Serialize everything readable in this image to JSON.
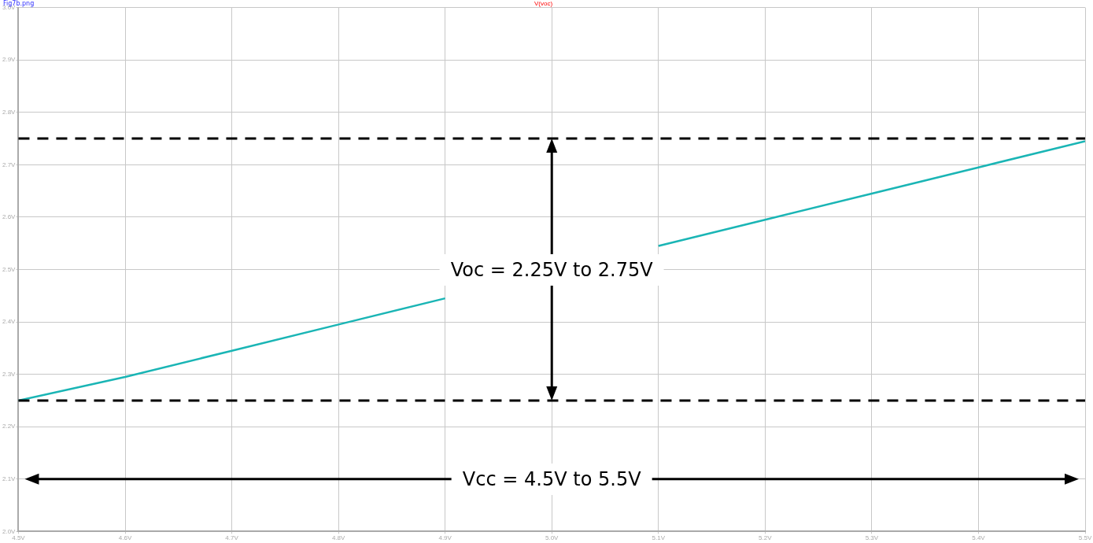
{
  "chart_data": {
    "type": "line",
    "title": "V(voc)",
    "x": [
      4.5,
      4.6,
      4.7,
      4.8,
      4.9,
      5.0,
      5.1,
      5.2,
      5.3,
      5.4,
      5.5
    ],
    "series": [
      {
        "color": "#1ab5b5",
        "values": [
          2.25,
          2.295,
          2.345,
          2.395,
          2.445,
          null,
          2.545,
          2.595,
          2.645,
          2.695,
          2.745
        ]
      }
    ],
    "xlim": [
      4.5,
      5.5
    ],
    "ylim": [
      2.0,
      3.0
    ],
    "xticks": [
      {
        "value": 4.5,
        "label": "4.5V"
      },
      {
        "value": 4.6,
        "label": "4.6V"
      },
      {
        "value": 4.7,
        "label": "4.7V"
      },
      {
        "value": 4.8,
        "label": "4.8V"
      },
      {
        "value": 4.9,
        "label": "4.9V"
      },
      {
        "value": 5.0,
        "label": "5.0V"
      },
      {
        "value": 5.1,
        "label": "5.1V"
      },
      {
        "value": 5.2,
        "label": "5.2V"
      },
      {
        "value": 5.3,
        "label": "5.3V"
      },
      {
        "value": 5.4,
        "label": "5.4V"
      },
      {
        "value": 5.5,
        "label": "5.5V"
      }
    ],
    "yticks": [
      {
        "value": 2.0,
        "label": "2.0V"
      },
      {
        "value": 2.1,
        "label": "2.1V"
      },
      {
        "value": 2.2,
        "label": "2.2V"
      },
      {
        "value": 2.3,
        "label": "2.3V"
      },
      {
        "value": 2.4,
        "label": "2.4V"
      },
      {
        "value": 2.5,
        "label": "2.5V"
      },
      {
        "value": 2.6,
        "label": "2.6V"
      },
      {
        "value": 2.7,
        "label": "2.7V"
      },
      {
        "value": 2.8,
        "label": "2.8V"
      },
      {
        "value": 2.9,
        "label": "2.9V"
      },
      {
        "value": 3.0,
        "label": "3.0V"
      }
    ],
    "ref_lines": [
      {
        "axis": "y",
        "value": 2.75,
        "color": "#000000",
        "line_style": "dashed"
      },
      {
        "axis": "y",
        "value": 2.25,
        "color": "#000000",
        "line_style": "dashed"
      }
    ],
    "annotations": [
      "Fig7b.png",
      "Voc = 2.25V to 2.75V",
      "Vcc = 4.5V to 5.5V"
    ],
    "grid": true,
    "marker": "none",
    "line_style": "solid",
    "legend": false
  }
}
